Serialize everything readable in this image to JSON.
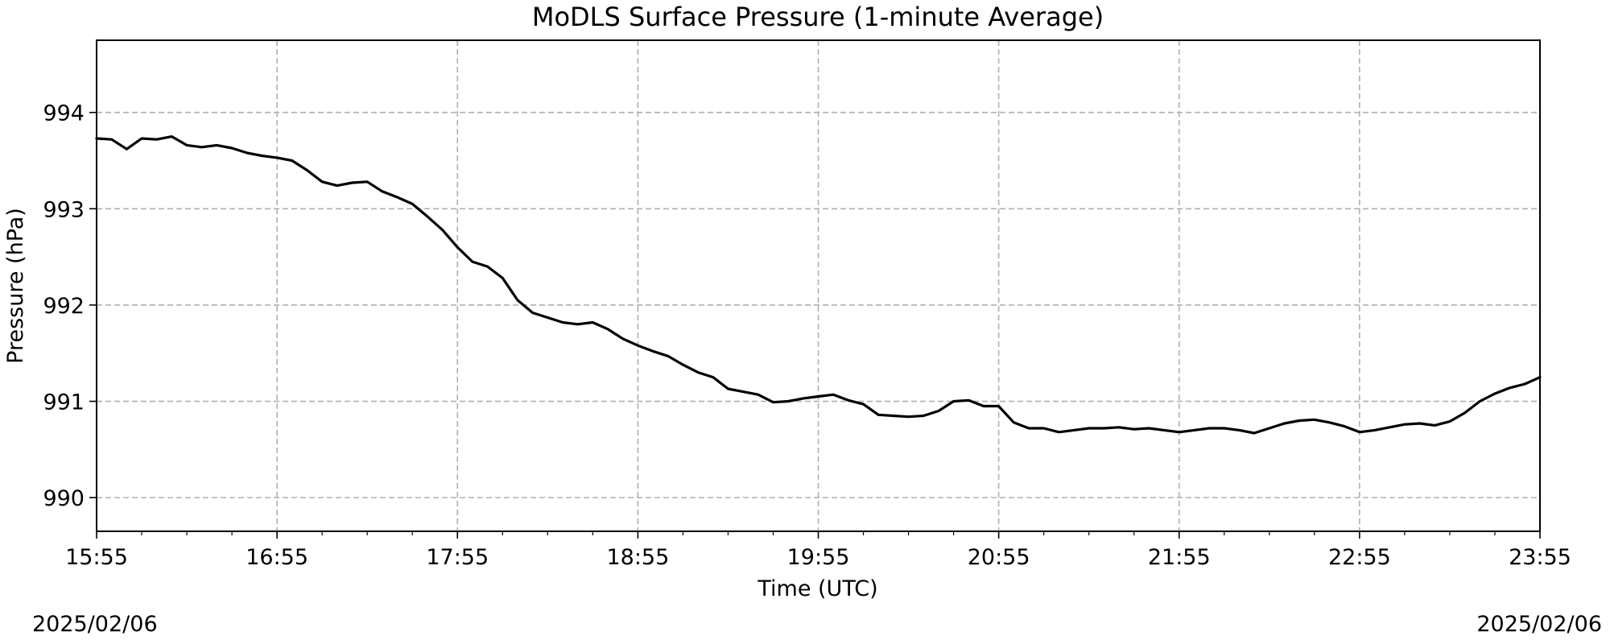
{
  "chart_data": {
    "type": "line",
    "title": "MoDLS Surface Pressure (1-minute Average)",
    "xlabel": "Time (UTC)",
    "ylabel": "Pressure (hPa)",
    "x_ticks": [
      "15:55",
      "16:55",
      "17:55",
      "18:55",
      "19:55",
      "20:55",
      "21:55",
      "22:55",
      "23:55"
    ],
    "xlim": [
      "15:55",
      "23:55"
    ],
    "y_ticks": [
      990,
      991,
      992,
      993,
      994
    ],
    "ylim": [
      989.65,
      994.75
    ],
    "grid": true,
    "grid_style": "dashed",
    "line_color": "#000000",
    "series": [
      {
        "x": [
          "15:55",
          "16:00",
          "16:05",
          "16:10",
          "16:15",
          "16:20",
          "16:25",
          "16:30",
          "16:35",
          "16:40",
          "16:45",
          "16:50",
          "16:55",
          "17:00",
          "17:05",
          "17:10",
          "17:15",
          "17:20",
          "17:25",
          "17:30",
          "17:35",
          "17:40",
          "17:45",
          "17:50",
          "17:55",
          "18:00",
          "18:05",
          "18:10",
          "18:15",
          "18:20",
          "18:25",
          "18:30",
          "18:35",
          "18:40",
          "18:45",
          "18:50",
          "18:55",
          "19:00",
          "19:05",
          "19:10",
          "19:15",
          "19:20",
          "19:25",
          "19:30",
          "19:35",
          "19:40",
          "19:45",
          "19:50",
          "19:55",
          "20:00",
          "20:05",
          "20:10",
          "20:15",
          "20:20",
          "20:25",
          "20:30",
          "20:35",
          "20:40",
          "20:45",
          "20:50",
          "20:55",
          "21:00",
          "21:05",
          "21:10",
          "21:15",
          "21:20",
          "21:25",
          "21:30",
          "21:35",
          "21:40",
          "21:45",
          "21:50",
          "21:55",
          "22:00",
          "22:05",
          "22:10",
          "22:15",
          "22:20",
          "22:25",
          "22:30",
          "22:35",
          "22:40",
          "22:45",
          "22:50",
          "22:55",
          "23:00",
          "23:05",
          "23:10",
          "23:15",
          "23:20",
          "23:25",
          "23:30",
          "23:35",
          "23:40",
          "23:45",
          "23:50",
          "23:55"
        ],
        "values": [
          993.73,
          993.72,
          993.62,
          993.73,
          993.72,
          993.75,
          993.66,
          993.64,
          993.66,
          993.63,
          993.58,
          993.55,
          993.53,
          993.5,
          993.4,
          993.28,
          993.24,
          993.27,
          993.28,
          993.18,
          993.12,
          993.05,
          992.92,
          992.78,
          992.6,
          992.45,
          992.4,
          992.28,
          992.05,
          991.92,
          991.87,
          991.82,
          991.8,
          991.82,
          991.75,
          991.65,
          991.58,
          991.52,
          991.47,
          991.38,
          991.3,
          991.25,
          991.13,
          991.1,
          991.07,
          990.99,
          991.0,
          991.03,
          991.05,
          991.07,
          991.01,
          990.97,
          990.86,
          990.85,
          990.84,
          990.85,
          990.9,
          991.0,
          991.01,
          990.95,
          990.95,
          990.78,
          990.72,
          990.72,
          990.68,
          990.7,
          990.72,
          990.72,
          990.73,
          990.71,
          990.72,
          990.7,
          990.68,
          990.7,
          990.72,
          990.72,
          990.7,
          990.67,
          990.72,
          990.77,
          990.8,
          990.81,
          990.78,
          990.74,
          990.68,
          990.7,
          990.73,
          990.76,
          990.77,
          990.75,
          990.79,
          990.88,
          991.0,
          991.08,
          991.14,
          991.18,
          991.25
        ]
      }
    ]
  },
  "dates": {
    "left": "2025/02/06",
    "right": "2025/02/06"
  }
}
